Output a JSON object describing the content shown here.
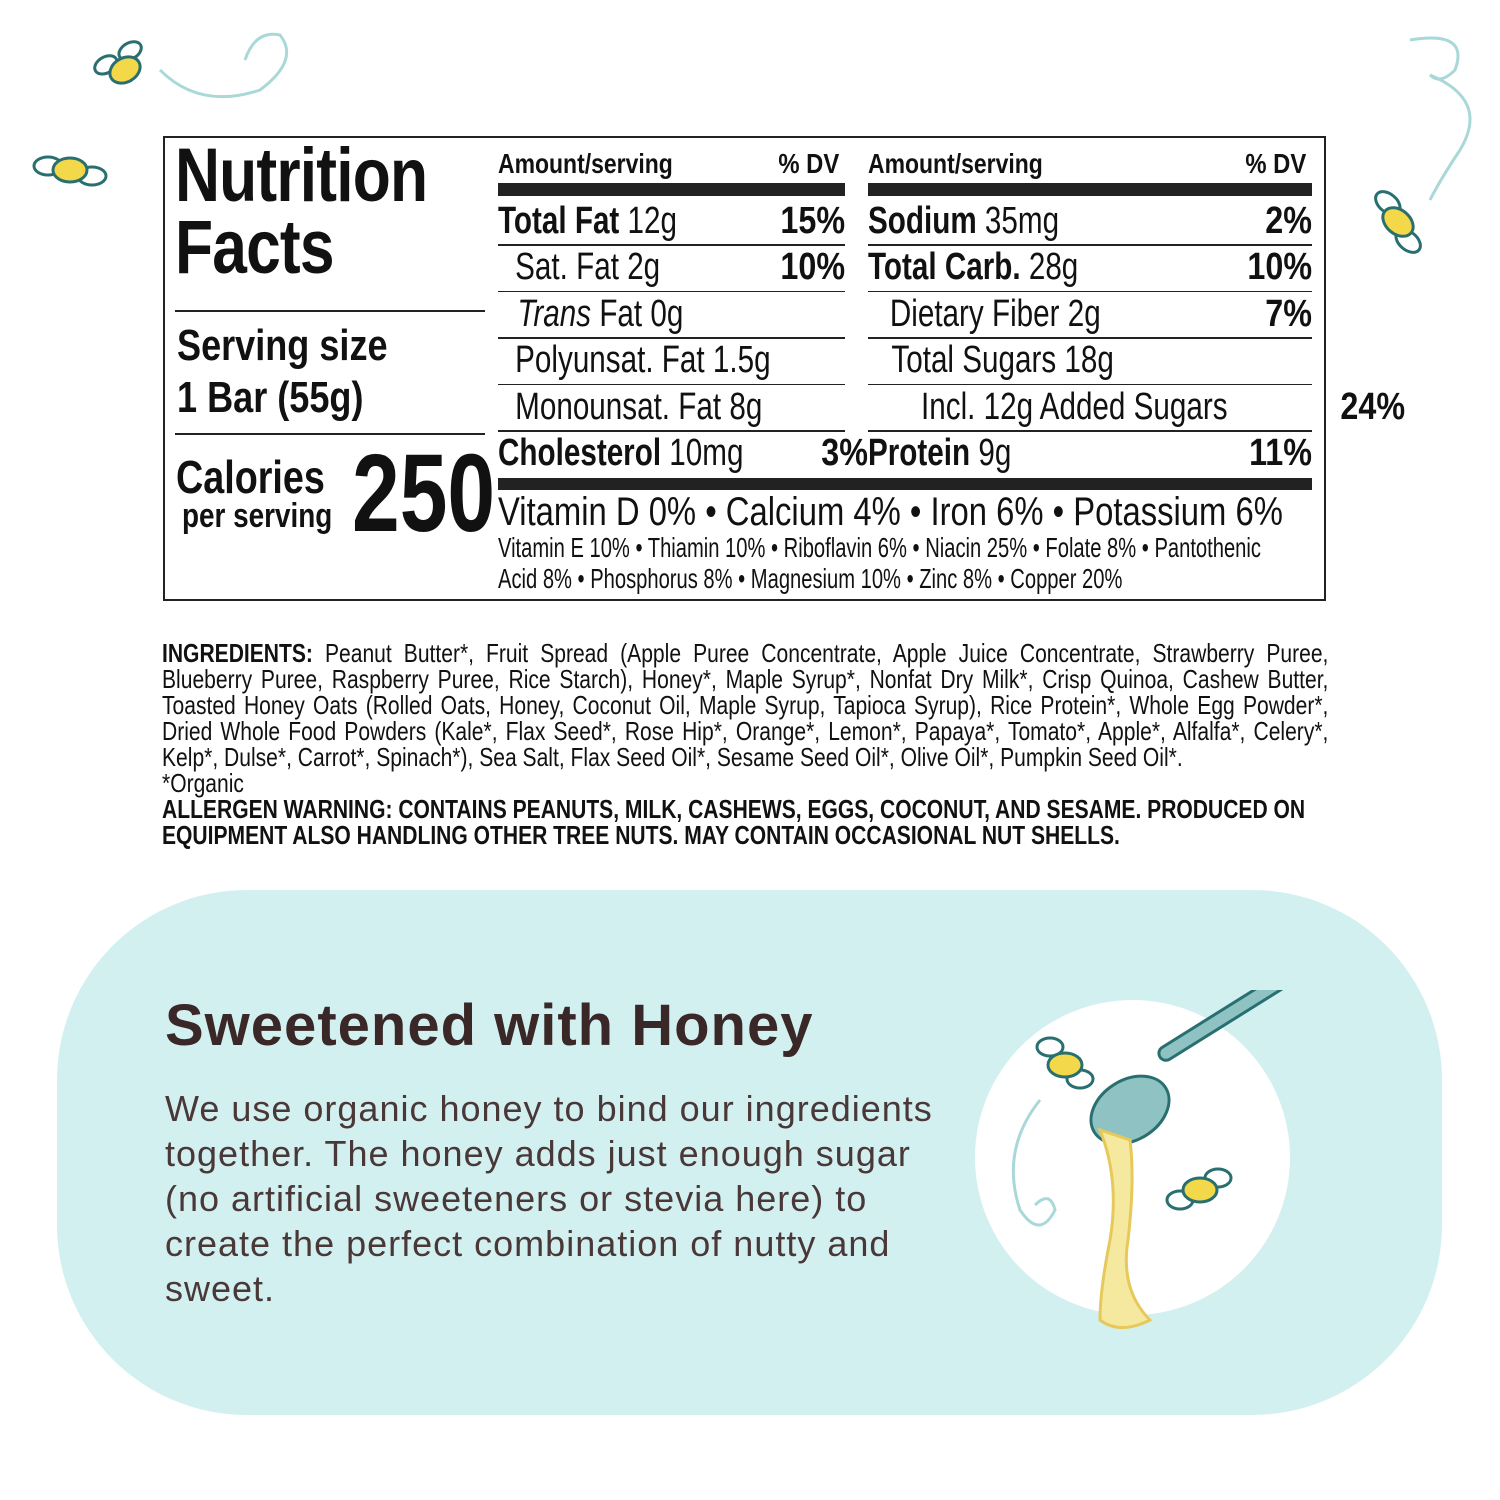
{
  "nutrition": {
    "title_line1": "Nutrition",
    "title_line2": "Facts",
    "serving_label": "Serving size",
    "serving_value": "1 Bar (55g)",
    "calories_label": "Calories",
    "calories_sub": "per serving",
    "calories_value": "250",
    "col_header_amount": "Amount/serving",
    "col_header_dv": "% DV",
    "left_rows": [
      {
        "name": "Total Fat",
        "amount": "12g",
        "dv": "15%",
        "bold": true
      },
      {
        "name": "Sat. Fat",
        "amount": "2g",
        "dv": "10%"
      },
      {
        "name": "Trans",
        "name2": "Fat",
        "amount": "0g",
        "dv": ""
      },
      {
        "name": "Polyunsat. Fat",
        "amount": "1.5g",
        "dv": ""
      },
      {
        "name": "Monounsat. Fat",
        "amount": "8g",
        "dv": ""
      },
      {
        "name": "Cholesterol",
        "amount": "10mg",
        "dv": "3%",
        "bold": true
      }
    ],
    "right_rows": [
      {
        "name": "Sodium",
        "amount": "35mg",
        "dv": "2%",
        "bold": true
      },
      {
        "name": "Total Carb.",
        "amount": "28g",
        "dv": "10%",
        "bold": true
      },
      {
        "name": "Dietary Fiber",
        "amount": "2g",
        "dv": "7%"
      },
      {
        "name": "Total Sugars",
        "amount": "18g",
        "dv": ""
      },
      {
        "name": "Incl. 12g Added Sugars",
        "amount": "",
        "dv": "24%"
      },
      {
        "name": "Protein",
        "amount": "9g",
        "dv": "11%",
        "bold": true
      }
    ],
    "vitamins_main": "Vitamin D 0% • Calcium 4% • Iron 6% • Potassium 6%",
    "vitamins_line1": "Vitamin E 10% • Thiamin 10% • Riboflavin 6% • Niacin 25% • Folate 8% • Pantothenic",
    "vitamins_line2": "Acid 8% • Phosphorus 8% • Magnesium 10% • Zinc 8% • Copper 20%"
  },
  "ingredients": {
    "label": "INGREDIENTS:",
    "text": " Peanut Butter*, Fruit Spread (Apple Puree Concentrate, Apple Juice Concentrate, Strawberry Puree, Blueberry Puree, Raspberry Puree, Rice Starch), Honey*, Maple Syrup*, Nonfat Dry Milk*, Crisp Quinoa, Cashew Butter, Toasted Honey Oats (Rolled Oats, Honey, Coconut Oil, Maple Syrup, Tapioca Syrup), Rice Protein*, Whole Egg Powder*, Dried Whole Food Powders (Kale*, Flax Seed*, Rose Hip*, Orange*, Lemon*, Papaya*, Tomato*, Apple*, Alfalfa*, Celery*, Kelp*, Dulse*, Carrot*, Spinach*), Sea Salt, Flax Seed Oil*, Sesame Seed Oil*, Olive Oil*, Pumpkin Seed Oil*.",
    "organic_note": "*Organic",
    "allergen": "ALLERGEN WARNING: CONTAINS PEANUTS, MILK, CASHEWS, EGGS, COCONUT, AND SESAME.  PRODUCED ON EQUIPMENT ALSO HANDLING OTHER TREE NUTS.  MAY CONTAIN OCCASIONAL NUT SHELLS."
  },
  "honey_panel": {
    "heading": "Sweetened with Honey",
    "body": "We use organic honey to bind our ingredients together. The honey adds just enough sugar (no artificial sweeteners or stevia here) to create the perfect combination of nutty and sweet.",
    "colors": {
      "panel": "#d3f0f0",
      "heading": "#3a2828",
      "honey": "#f5e9a0",
      "dipper": "#8fc3c3"
    }
  },
  "icons": [
    "bee-icon",
    "honey-dipper-icon",
    "swirl-line"
  ]
}
